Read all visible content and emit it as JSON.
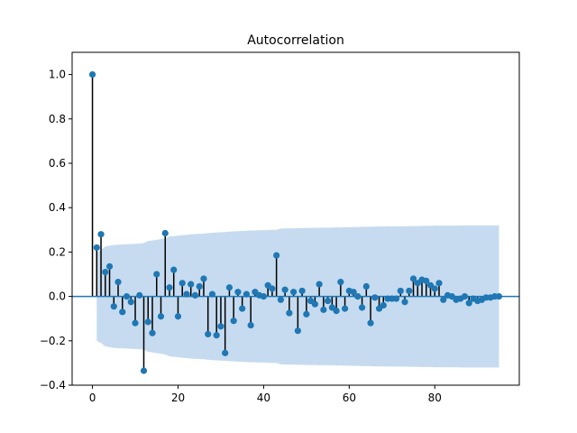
{
  "chart_data": {
    "type": "stem",
    "title": "Autocorrelation",
    "xlabel": "",
    "ylabel": "",
    "xlim": [
      -4.75,
      99.75
    ],
    "ylim": [
      -0.4,
      1.1
    ],
    "xticks": [
      0,
      20,
      40,
      60,
      80
    ],
    "yticks": [
      -0.4,
      -0.2,
      0.0,
      0.2,
      0.4,
      0.6,
      0.8,
      1.0
    ],
    "ytick_labels": [
      "−0.4",
      "−0.2",
      "0.0",
      "0.2",
      "0.4",
      "0.6",
      "0.8",
      "1.0"
    ],
    "grid": false,
    "colors": {
      "marker": "#1f77b4",
      "stem": "#000000",
      "confidence_band": "#c6dbef",
      "baseline": "#1f77b4"
    },
    "lags": [
      0,
      1,
      2,
      3,
      4,
      5,
      6,
      7,
      8,
      9,
      10,
      11,
      12,
      13,
      14,
      15,
      16,
      17,
      18,
      19,
      20,
      21,
      22,
      23,
      24,
      25,
      26,
      27,
      28,
      29,
      30,
      31,
      32,
      33,
      34,
      35,
      36,
      37,
      38,
      39,
      40,
      41,
      42,
      43,
      44,
      45,
      46,
      47,
      48,
      49,
      50,
      51,
      52,
      53,
      54,
      55,
      56,
      57,
      58,
      59,
      60,
      61,
      62,
      63,
      64,
      65,
      66,
      67,
      68,
      69,
      70,
      71,
      72,
      73,
      74,
      75,
      76,
      77,
      78,
      79,
      80,
      81,
      82,
      83,
      84,
      85,
      86,
      87,
      88,
      89,
      90,
      91,
      92,
      93,
      94,
      95
    ],
    "values": [
      1.0,
      0.22,
      0.28,
      0.11,
      0.135,
      -0.045,
      0.065,
      -0.07,
      0.0,
      -0.025,
      -0.12,
      0.005,
      -0.335,
      -0.115,
      -0.165,
      0.1,
      -0.09,
      0.285,
      0.04,
      0.12,
      -0.09,
      0.06,
      0.01,
      0.055,
      0.005,
      0.045,
      0.08,
      -0.17,
      0.01,
      -0.175,
      -0.135,
      -0.255,
      0.04,
      -0.11,
      0.02,
      -0.055,
      0.01,
      -0.13,
      0.02,
      0.005,
      0.0,
      0.05,
      0.035,
      0.185,
      -0.015,
      0.03,
      -0.075,
      0.02,
      -0.155,
      0.025,
      -0.08,
      -0.02,
      -0.035,
      0.055,
      -0.06,
      -0.02,
      -0.05,
      -0.065,
      0.065,
      -0.055,
      0.025,
      0.02,
      0.0,
      -0.05,
      0.045,
      -0.12,
      -0.005,
      -0.055,
      -0.04,
      -0.01,
      -0.01,
      -0.01,
      0.025,
      -0.025,
      0.025,
      0.08,
      0.06,
      0.075,
      0.07,
      0.05,
      0.035,
      0.06,
      -0.015,
      0.005,
      0.0,
      -0.015,
      -0.01,
      0.0,
      -0.03,
      -0.01,
      -0.02,
      -0.015,
      -0.005,
      -0.005,
      0.0,
      0.0
    ],
    "confidence_upper": [
      null,
      0.2,
      0.21,
      0.225,
      0.228,
      0.232,
      0.233,
      0.234,
      0.235,
      0.236,
      0.237,
      0.238,
      0.24,
      0.25,
      0.252,
      0.255,
      0.258,
      0.262,
      0.27,
      0.272,
      0.274,
      0.276,
      0.278,
      0.28,
      0.281,
      0.282,
      0.283,
      0.285,
      0.287,
      0.288,
      0.289,
      0.29,
      0.292,
      0.293,
      0.294,
      0.295,
      0.296,
      0.297,
      0.297,
      0.298,
      0.298,
      0.299,
      0.3,
      0.3,
      0.306,
      0.307,
      0.307,
      0.307,
      0.308,
      0.308,
      0.309,
      0.309,
      0.309,
      0.31,
      0.31,
      0.31,
      0.31,
      0.311,
      0.311,
      0.312,
      0.312,
      0.313,
      0.313,
      0.314,
      0.314,
      0.314,
      0.315,
      0.315,
      0.315,
      0.316,
      0.316,
      0.316,
      0.316,
      0.316,
      0.317,
      0.317,
      0.317,
      0.318,
      0.318,
      0.318,
      0.319,
      0.319,
      0.319,
      0.319,
      0.319,
      0.319,
      0.32,
      0.32,
      0.32,
      0.32,
      0.32,
      0.32,
      0.32,
      0.32,
      0.32,
      0.32
    ]
  }
}
